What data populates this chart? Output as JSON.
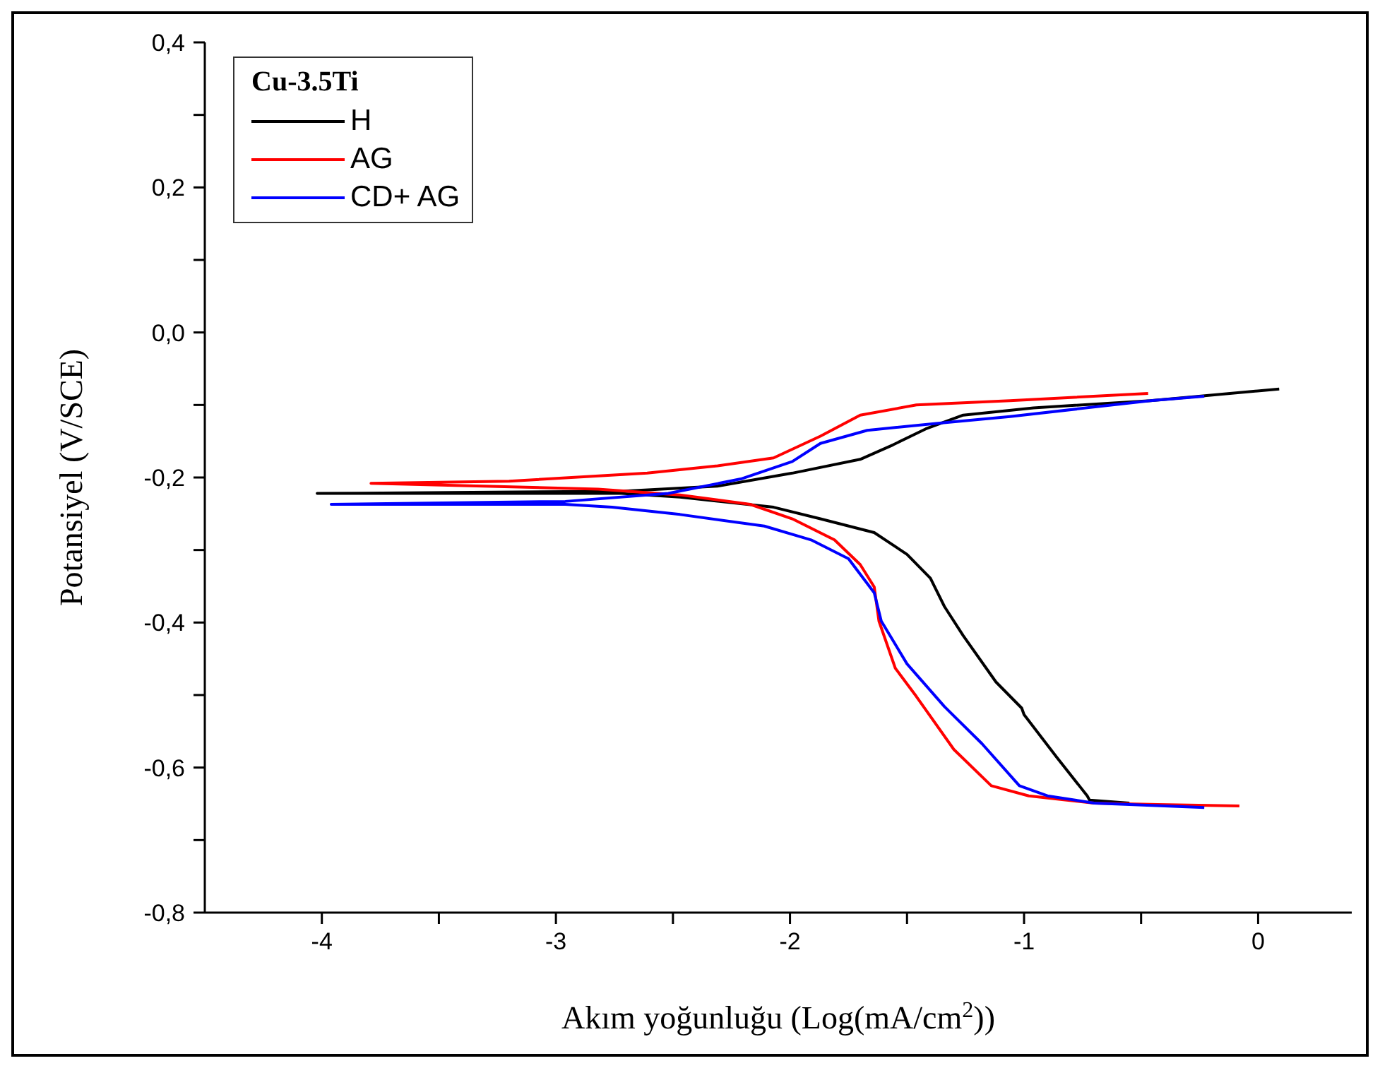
{
  "chart_data": {
    "type": "line",
    "xlabel": "Akım yoğunluğu (Log(mA/cm$^{2}$))",
    "ylabel": "Potansiyel (V/SCE)",
    "legend_title": "Cu-3.5Ti",
    "legend": "top left",
    "grid": false,
    "marker": "none",
    "line_style": "solid",
    "xlim": [
      -4.5,
      0.4
    ],
    "ylim": [
      -0.8,
      0.4
    ],
    "xticks": [
      -4,
      {
        "value": -3.5,
        "label": null
      },
      -3,
      {
        "value": -2.5,
        "label": null
      },
      -2,
      {
        "value": -1.5,
        "label": null
      },
      -1,
      {
        "value": -0.5,
        "label": null
      },
      0
    ],
    "yticks": [
      {
        "value": -0.8,
        "label": "-0,8"
      },
      {
        "value": -0.7,
        "label": null
      },
      {
        "value": -0.6,
        "label": "-0,6"
      },
      {
        "value": -0.5,
        "label": null
      },
      {
        "value": -0.4,
        "label": "-0,4"
      },
      {
        "value": -0.3,
        "label": null
      },
      {
        "value": -0.2,
        "label": "-0,2"
      },
      {
        "value": -0.1,
        "label": null
      },
      {
        "value": 0,
        "label": "0,0"
      },
      {
        "value": 0.1,
        "label": null
      },
      {
        "value": 0.2,
        "label": "0,2"
      },
      {
        "value": 0.3,
        "label": null
      },
      {
        "value": 0.4,
        "label": "0,4"
      }
    ],
    "series": [
      {
        "name": "H",
        "color": "#000000",
        "x": [
          -0.55,
          -0.72,
          -0.73,
          -0.86,
          -1.0,
          -1.01,
          -1.12,
          -1.26,
          -1.34,
          -1.4,
          -1.5,
          -1.64,
          -1.87,
          -2.07,
          -2.47,
          -2.72,
          -4.02,
          -2.72,
          -2.31,
          -1.99,
          -1.7,
          -1.56,
          -1.42,
          -1.26,
          -0.96,
          -0.46,
          0.09
        ],
        "values": [
          -0.649,
          -0.645,
          -0.639,
          -0.586,
          -0.527,
          -0.518,
          -0.482,
          -0.418,
          -0.378,
          -0.339,
          -0.306,
          -0.276,
          -0.257,
          -0.241,
          -0.227,
          -0.222,
          -0.222,
          -0.219,
          -0.212,
          -0.194,
          -0.175,
          -0.155,
          -0.133,
          -0.114,
          -0.104,
          -0.094,
          -0.078
        ]
      },
      {
        "name": "AG",
        "color": "#ff0000",
        "x": [
          -0.08,
          -0.43,
          -0.7,
          -0.98,
          -1.14,
          -1.3,
          -1.46,
          -1.55,
          -1.62,
          -1.64,
          -1.7,
          -1.81,
          -1.99,
          -2.17,
          -2.47,
          -2.82,
          -3.79,
          -3.2,
          -2.61,
          -2.31,
          -2.07,
          -1.87,
          -1.7,
          -1.46,
          -1.06,
          -0.47
        ],
        "values": [
          -0.653,
          -0.651,
          -0.649,
          -0.639,
          -0.625,
          -0.575,
          -0.502,
          -0.463,
          -0.398,
          -0.351,
          -0.32,
          -0.286,
          -0.257,
          -0.237,
          -0.224,
          -0.216,
          -0.208,
          -0.205,
          -0.194,
          -0.184,
          -0.173,
          -0.143,
          -0.114,
          -0.1,
          -0.094,
          -0.084
        ]
      },
      {
        "name": "CD+ AG",
        "color": "#0000ff",
        "x": [
          -0.23,
          -0.7,
          -0.9,
          -1.02,
          -1.18,
          -1.34,
          -1.5,
          -1.61,
          -1.64,
          -1.75,
          -1.91,
          -2.11,
          -2.47,
          -2.76,
          -2.96,
          -3.96,
          -2.96,
          -2.52,
          -2.21,
          -1.99,
          -1.87,
          -1.67,
          -1.36,
          -1.06,
          -0.46,
          -0.23
        ],
        "values": [
          -0.655,
          -0.649,
          -0.639,
          -0.625,
          -0.567,
          -0.516,
          -0.457,
          -0.398,
          -0.359,
          -0.312,
          -0.286,
          -0.267,
          -0.251,
          -0.241,
          -0.237,
          -0.237,
          -0.233,
          -0.222,
          -0.202,
          -0.178,
          -0.153,
          -0.135,
          -0.125,
          -0.116,
          -0.094,
          -0.088
        ]
      }
    ]
  }
}
